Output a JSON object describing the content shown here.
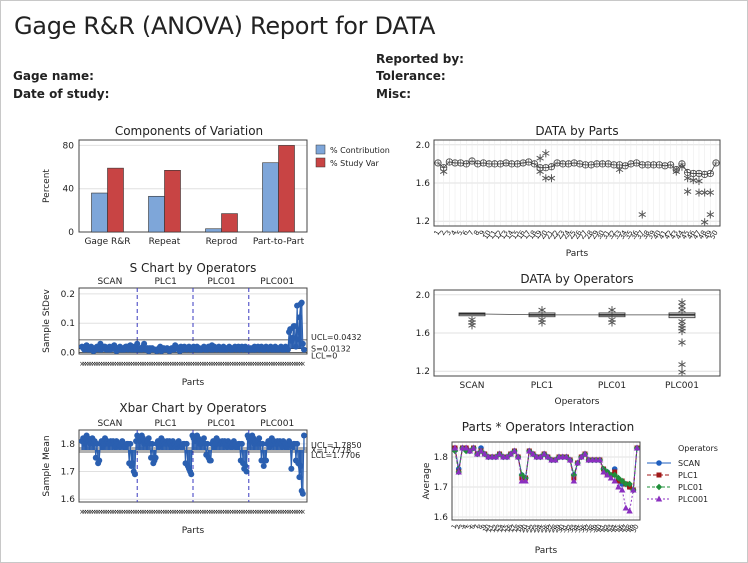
{
  "report": {
    "title": "Gage R&R (ANOVA) Report for DATA",
    "gage_name_label": "Gage name:",
    "date_label": "Date of study:",
    "reported_by_label": "Reported by:",
    "tolerance_label": "Tolerance:",
    "misc_label": "Misc:"
  },
  "colors": {
    "contribution": "#7ea6d9",
    "study_var": "#c84444",
    "operator_scan": "#1f5fbf",
    "operator_plc1": "#a01818",
    "operator_plc01": "#1f8f3a",
    "operator_plc001": "#8a2fbf",
    "control_line": "#2a5fb0",
    "divider": "#3a3ac0",
    "grid": "#e0e0e0"
  },
  "chart_data": [
    {
      "type": "bar",
      "id": "components",
      "title": "Components of Variation",
      "ylabel": "Percent",
      "categories": [
        "Gage R&R",
        "Repeat",
        "Reprod",
        "Part-to-Part"
      ],
      "series": [
        {
          "name": "% Contribution",
          "values": [
            36,
            33,
            3,
            64
          ]
        },
        {
          "name": "% Study Var",
          "values": [
            59,
            57,
            17,
            80
          ]
        }
      ],
      "ylim": [
        0,
        85
      ],
      "yticks": [
        0,
        40,
        80
      ],
      "legend": "right"
    },
    {
      "type": "scatter",
      "id": "data-by-parts",
      "title": "DATA by Parts",
      "xlabel": "Parts",
      "ylim": [
        1.15,
        2.05
      ],
      "yticks": [
        "1.2",
        "1.6",
        "2.0"
      ],
      "x_tick_labels": [
        "1",
        "2",
        "3",
        "4",
        "5",
        "6",
        "7",
        "8",
        "9",
        "10",
        "11",
        "12",
        "13",
        "14",
        "15",
        "16",
        "17",
        "18",
        "19",
        "20",
        "21",
        "22",
        "23",
        "24",
        "25",
        "26",
        "27",
        "28",
        "29",
        "30",
        "31",
        "32",
        "33",
        "34",
        "35",
        "36",
        "37",
        "38",
        "39",
        "40",
        "41",
        "42",
        "43",
        "44",
        "45",
        "46",
        "47",
        "48",
        "49",
        "50"
      ],
      "means": [
        1.81,
        1.76,
        1.82,
        1.81,
        1.81,
        1.8,
        1.83,
        1.8,
        1.81,
        1.8,
        1.8,
        1.8,
        1.81,
        1.8,
        1.8,
        1.81,
        1.82,
        1.8,
        1.76,
        1.76,
        1.77,
        1.81,
        1.8,
        1.8,
        1.81,
        1.8,
        1.79,
        1.79,
        1.8,
        1.8,
        1.8,
        1.79,
        1.79,
        1.78,
        1.8,
        1.81,
        1.79,
        1.79,
        1.79,
        1.79,
        1.78,
        1.79,
        1.74,
        1.8,
        1.71,
        1.7,
        1.7,
        1.69,
        1.7,
        1.81
      ],
      "outliers": [
        [
          2,
          1.72
        ],
        [
          19,
          1.72
        ],
        [
          19,
          1.86
        ],
        [
          20,
          1.65
        ],
        [
          20,
          1.91
        ],
        [
          21,
          1.65
        ],
        [
          33,
          1.74
        ],
        [
          37,
          1.27
        ],
        [
          43,
          1.72
        ],
        [
          44,
          1.77
        ],
        [
          45,
          1.65
        ],
        [
          45,
          1.51
        ],
        [
          46,
          1.63
        ],
        [
          47,
          1.5
        ],
        [
          47,
          1.62
        ],
        [
          48,
          1.19
        ],
        [
          48,
          1.5
        ],
        [
          49,
          1.27
        ],
        [
          49,
          1.5
        ]
      ]
    },
    {
      "type": "line",
      "id": "s-chart",
      "title": "S Chart by Operators",
      "xlabel": "Parts",
      "ylabel": "Sample StDev",
      "operators": [
        "SCAN",
        "PLC1",
        "PLC01",
        "PLC001"
      ],
      "ylim": [
        -0.005,
        0.22
      ],
      "yticks": [
        "0.0",
        "0.1",
        "0.2"
      ],
      "ucl_label": "UCL=0.0432",
      "cl_label": "S=0.0132",
      "lcl_label": "LCL=0",
      "ucl": 0.0432,
      "cl": 0.0132,
      "lcl": 0,
      "values": [
        0.02,
        0.015,
        0.01,
        0.02,
        0.025,
        0.01,
        0.015,
        0.01,
        0.02,
        0.01,
        0.005,
        0.015,
        0.01,
        0.02,
        0.015,
        0.01,
        0.03,
        0.01,
        0.015,
        0.02,
        0.02,
        0.01,
        0.015,
        0.01,
        0.02,
        0.01,
        0.015,
        0.02,
        0.025,
        0.01,
        0.005,
        0.015,
        0.01,
        0.02,
        0.01,
        0.01,
        0.015,
        0.01,
        0.02,
        0.02,
        0.01,
        0.015,
        0.025,
        0.01,
        0.02,
        0.01,
        0.02,
        0.01,
        0.03,
        0.01,
        0.01,
        0.015,
        0.01,
        0.02,
        0.03,
        0.01,
        0.01,
        0.015,
        0.005,
        0.015,
        0.01,
        0.015,
        0.01,
        0.01,
        0.01,
        0.005,
        0.01,
        0.015,
        0.02,
        0.005,
        0.01,
        0.015,
        0.01,
        0.01,
        0.015,
        0.01,
        0.005,
        0.01,
        0.015,
        0.01,
        0.01,
        0.025,
        0.02,
        0.015,
        0.01,
        0.005,
        0.02,
        0.01,
        0.01,
        0.02,
        0.015,
        0.01,
        0.015,
        0.02,
        0.01,
        0.015,
        0.01,
        0.02,
        0.015,
        0.01,
        0.02,
        0.01,
        0.015,
        0.01,
        0.01,
        0.015,
        0.02,
        0.01,
        0.015,
        0.01,
        0.02,
        0.015,
        0.01,
        0.025,
        0.01,
        0.02,
        0.015,
        0.01,
        0.015,
        0.02,
        0.01,
        0.015,
        0.01,
        0.02,
        0.01,
        0.015,
        0.01,
        0.015,
        0.02,
        0.01,
        0.015,
        0.01,
        0.015,
        0.02,
        0.01,
        0.015,
        0.02,
        0.01,
        0.015,
        0.02,
        0.01,
        0.015,
        0.02,
        0.01,
        0.015,
        0.01,
        0.015,
        0.01,
        0.015,
        0.01,
        0.02,
        0.01,
        0.015,
        0.02,
        0.01,
        0.015,
        0.02,
        0.01,
        0.015,
        0.01,
        0.02,
        0.015,
        0.01,
        0.015,
        0.02,
        0.01,
        0.015,
        0.01,
        0.02,
        0.01,
        0.015,
        0.01,
        0.015,
        0.02,
        0.01,
        0.015,
        0.01,
        0.02,
        0.015,
        0.01,
        0.07,
        0.08,
        0.04,
        0.05,
        0.09,
        0.09,
        0.02,
        0.16,
        0.045,
        0.12,
        0.165,
        0.17,
        0.03,
        0.01
      ]
    },
    {
      "type": "line",
      "id": "xbar-chart",
      "title": "Xbar Chart by Operators",
      "xlabel": "Parts",
      "ylabel": "Sample Mean",
      "operators": [
        "SCAN",
        "PLC1",
        "PLC01",
        "PLC001"
      ],
      "ylim": [
        1.59,
        1.85
      ],
      "yticks": [
        "1.6",
        "1.7",
        "1.8"
      ],
      "ucl_label": "UCL=1.7850",
      "cl_label": "X=1.7778",
      "lcl_label": "LCL=1.7706",
      "ucl": 1.785,
      "cl": 1.7778,
      "lcl": 1.7706,
      "values": [
        1.81,
        1.82,
        1.8,
        1.82,
        1.83,
        1.82,
        1.81,
        1.8,
        1.81,
        1.82,
        1.8,
        1.81,
        1.75,
        1.8,
        1.73,
        1.74,
        1.8,
        1.81,
        1.79,
        1.8,
        1.82,
        1.8,
        1.81,
        1.8,
        1.8,
        1.81,
        1.8,
        1.81,
        1.8,
        1.79,
        1.81,
        1.8,
        1.8,
        1.79,
        1.8,
        1.81,
        1.8,
        1.79,
        1.79,
        1.8,
        1.8,
        1.73,
        1.8,
        1.72,
        1.73,
        1.7,
        1.69,
        1.81,
        1.83,
        1.82,
        1.81,
        1.82,
        1.83,
        1.82,
        1.8,
        1.81,
        1.8,
        1.81,
        1.82,
        1.8,
        1.75,
        1.8,
        1.73,
        1.74,
        1.75,
        1.8,
        1.81,
        1.79,
        1.8,
        1.82,
        1.8,
        1.81,
        1.8,
        1.8,
        1.81,
        1.8,
        1.81,
        1.8,
        1.79,
        1.81,
        1.8,
        1.8,
        1.79,
        1.8,
        1.81,
        1.8,
        1.79,
        1.79,
        1.8,
        1.8,
        1.73,
        1.8,
        1.72,
        1.71,
        1.7,
        1.69,
        1.83,
        1.82,
        1.81,
        1.82,
        1.83,
        1.82,
        1.8,
        1.81,
        1.8,
        1.81,
        1.82,
        1.8,
        1.76,
        1.8,
        1.75,
        1.74,
        1.74,
        1.8,
        1.81,
        1.79,
        1.8,
        1.82,
        1.8,
        1.81,
        1.8,
        1.8,
        1.81,
        1.8,
        1.81,
        1.8,
        1.79,
        1.81,
        1.8,
        1.8,
        1.79,
        1.8,
        1.81,
        1.8,
        1.79,
        1.79,
        1.8,
        1.8,
        1.74,
        1.8,
        1.73,
        1.71,
        1.72,
        1.7,
        1.83,
        1.82,
        1.81,
        1.82,
        1.83,
        1.82,
        1.8,
        1.81,
        1.8,
        1.81,
        1.82,
        1.8,
        1.74,
        1.8,
        1.72,
        1.74,
        1.74,
        1.8,
        1.81,
        1.79,
        1.8,
        1.82,
        1.8,
        1.81,
        1.8,
        1.8,
        1.81,
        1.8,
        1.81,
        1.8,
        1.79,
        1.81,
        1.8,
        1.8,
        1.79,
        1.8,
        1.81,
        1.8,
        1.71,
        1.79,
        1.8,
        1.8,
        1.74,
        1.8,
        1.73,
        1.68,
        1.72,
        1.63,
        1.62,
        1.83
      ]
    },
    {
      "type": "box",
      "id": "data-by-operators",
      "title": "DATA by Operators",
      "xlabel": "Operators",
      "categories": [
        "SCAN",
        "PLC1",
        "PLC01",
        "PLC001"
      ],
      "ylim": [
        1.15,
        2.05
      ],
      "yticks": [
        "1.2",
        "1.6",
        "2.0"
      ],
      "medians": [
        1.8,
        1.79,
        1.79,
        1.79
      ],
      "q1": [
        1.78,
        1.77,
        1.77,
        1.76
      ],
      "q3": [
        1.81,
        1.81,
        1.81,
        1.81
      ],
      "outliers": [
        [
          0,
          1.74
        ],
        [
          0,
          1.71
        ],
        [
          0,
          1.68
        ],
        [
          1,
          1.74
        ],
        [
          1,
          1.71
        ],
        [
          1,
          1.84
        ],
        [
          2,
          1.74
        ],
        [
          2,
          1.71
        ],
        [
          2,
          1.84
        ],
        [
          3,
          1.72
        ],
        [
          3,
          1.68
        ],
        [
          3,
          1.65
        ],
        [
          3,
          1.62
        ],
        [
          3,
          1.84
        ],
        [
          3,
          1.88
        ],
        [
          3,
          1.92
        ],
        [
          3,
          1.5
        ],
        [
          3,
          1.27
        ],
        [
          3,
          1.19
        ]
      ]
    },
    {
      "type": "line",
      "id": "interaction",
      "title": "Parts * Operators Interaction",
      "xlabel": "Parts",
      "ylabel": "Average",
      "legend_title": "Operators",
      "ylim": [
        1.59,
        1.85
      ],
      "yticks": [
        "1.6",
        "1.7",
        "1.8"
      ],
      "series": [
        {
          "name": "SCAN",
          "values": [
            1.83,
            1.76,
            1.83,
            1.83,
            1.82,
            1.83,
            1.81,
            1.83,
            1.81,
            1.8,
            1.8,
            1.8,
            1.81,
            1.8,
            1.8,
            1.81,
            1.82,
            1.8,
            1.74,
            1.73,
            1.82,
            1.81,
            1.8,
            1.8,
            1.81,
            1.8,
            1.79,
            1.79,
            1.8,
            1.8,
            1.8,
            1.79,
            1.74,
            1.78,
            1.8,
            1.81,
            1.79,
            1.79,
            1.79,
            1.79,
            1.76,
            1.75,
            1.74,
            1.76,
            1.72,
            1.71,
            1.71,
            1.7,
            1.69,
            1.83
          ]
        },
        {
          "name": "PLC1",
          "values": [
            1.83,
            1.75,
            1.83,
            1.83,
            1.82,
            1.83,
            1.81,
            1.82,
            1.81,
            1.8,
            1.8,
            1.8,
            1.81,
            1.8,
            1.8,
            1.81,
            1.82,
            1.8,
            1.73,
            1.73,
            1.82,
            1.81,
            1.8,
            1.8,
            1.81,
            1.8,
            1.79,
            1.79,
            1.8,
            1.8,
            1.8,
            1.79,
            1.73,
            1.78,
            1.8,
            1.81,
            1.79,
            1.79,
            1.79,
            1.79,
            1.76,
            1.74,
            1.74,
            1.75,
            1.72,
            1.72,
            1.71,
            1.7,
            1.69,
            1.83
          ]
        },
        {
          "name": "PLC01",
          "values": [
            1.82,
            1.75,
            1.83,
            1.82,
            1.82,
            1.83,
            1.81,
            1.82,
            1.81,
            1.8,
            1.8,
            1.8,
            1.81,
            1.8,
            1.8,
            1.81,
            1.82,
            1.8,
            1.74,
            1.73,
            1.82,
            1.81,
            1.8,
            1.8,
            1.81,
            1.8,
            1.79,
            1.79,
            1.8,
            1.8,
            1.8,
            1.79,
            1.74,
            1.78,
            1.8,
            1.81,
            1.79,
            1.79,
            1.79,
            1.79,
            1.76,
            1.75,
            1.74,
            1.74,
            1.73,
            1.72,
            1.71,
            1.71,
            1.69,
            1.83
          ]
        },
        {
          "name": "PLC001",
          "values": [
            1.83,
            1.75,
            1.83,
            1.83,
            1.82,
            1.83,
            1.81,
            1.82,
            1.81,
            1.8,
            1.8,
            1.8,
            1.81,
            1.8,
            1.8,
            1.81,
            1.82,
            1.8,
            1.72,
            1.72,
            1.82,
            1.81,
            1.8,
            1.8,
            1.81,
            1.8,
            1.79,
            1.79,
            1.8,
            1.8,
            1.8,
            1.79,
            1.72,
            1.78,
            1.8,
            1.81,
            1.79,
            1.79,
            1.79,
            1.79,
            1.75,
            1.74,
            1.73,
            1.72,
            1.7,
            1.69,
            1.63,
            1.62,
            1.69,
            1.83
          ]
        }
      ]
    }
  ]
}
